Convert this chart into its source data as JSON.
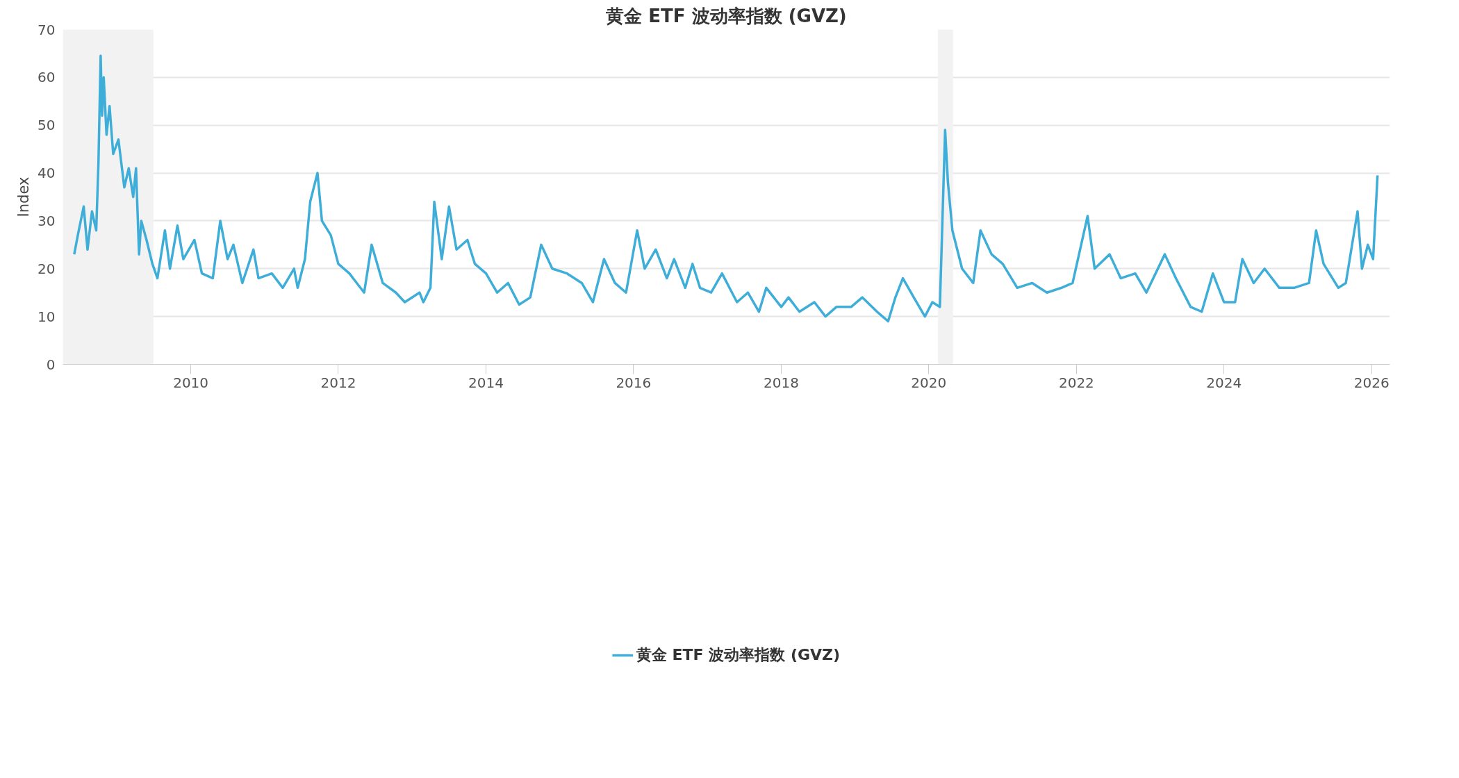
{
  "chart_data": {
    "type": "line",
    "title": "黄金 ETF 波动率指数 (GVZ)",
    "ylabel": "Index",
    "xlim": [
      "2008-04-08",
      "2026-04-01"
    ],
    "ylim": [
      0,
      70
    ],
    "xticks": [
      "2010",
      "2012",
      "2014",
      "2016",
      "2018",
      "2020",
      "2022",
      "2024",
      "2026"
    ],
    "yticks": [
      0,
      10,
      20,
      30,
      40,
      50,
      60,
      70
    ],
    "grid": "y",
    "legend": "bottom",
    "line_style": "solid",
    "marker": "none",
    "bands": [
      {
        "axis": "x",
        "from": "2008-04-08",
        "to": "2009-06-30",
        "color": "#f2f2f2"
      },
      {
        "axis": "x",
        "from": "2020-02-15",
        "to": "2020-04-30",
        "color": "#f2f2f2"
      }
    ],
    "x": [
      "2008-06-03",
      "2008-06-21",
      "2008-07-20",
      "2008-08-08",
      "2008-08-30",
      "2008-09-20",
      "2008-10-01",
      "2008-10-12",
      "2008-10-19",
      "2008-10-27",
      "2008-11-10",
      "2008-11-25",
      "2008-12-13",
      "2009-01-08",
      "2009-02-06",
      "2009-02-28",
      "2009-03-22",
      "2009-04-05",
      "2009-04-20",
      "2009-05-01",
      "2009-05-27",
      "2009-06-25",
      "2009-07-20",
      "2009-08-26",
      "2009-09-20",
      "2009-10-27",
      "2009-11-25",
      "2010-01-19",
      "2010-02-25",
      "2010-04-20",
      "2010-05-27",
      "2010-07-02",
      "2010-07-31",
      "2010-09-13",
      "2010-11-07",
      "2010-12-02",
      "2011-02-06",
      "2011-04-01",
      "2011-05-27",
      "2011-06-14",
      "2011-07-20",
      "2011-08-15",
      "2011-09-20",
      "2011-10-12",
      "2011-11-25",
      "2012-01-01",
      "2012-02-25",
      "2012-05-08",
      "2012-06-14",
      "2012-08-08",
      "2012-10-12",
      "2012-11-25",
      "2013-02-06",
      "2013-02-25",
      "2013-04-01",
      "2013-04-20",
      "2013-05-27",
      "2013-07-02",
      "2013-08-08",
      "2013-10-01",
      "2013-11-07",
      "2014-01-01",
      "2014-02-25",
      "2014-04-20",
      "2014-06-14",
      "2014-08-08",
      "2014-10-01",
      "2014-11-25",
      "2015-02-06",
      "2015-04-20",
      "2015-06-14",
      "2015-08-08",
      "2015-10-01",
      "2015-11-25",
      "2016-01-19",
      "2016-02-25",
      "2016-04-20",
      "2016-06-14",
      "2016-07-20",
      "2016-09-13",
      "2016-10-19",
      "2016-11-25",
      "2017-01-19",
      "2017-03-14",
      "2017-05-27",
      "2017-07-20",
      "2017-09-13",
      "2017-10-19",
      "2018-01-01",
      "2018-02-06",
      "2018-04-01",
      "2018-06-14",
      "2018-08-08",
      "2018-10-01",
      "2018-12-13",
      "2019-02-06",
      "2019-04-20",
      "2019-06-14",
      "2019-07-20",
      "2019-08-26",
      "2019-10-19",
      "2019-12-13",
      "2020-01-19",
      "2020-02-25",
      "2020-03-22",
      "2020-04-05",
      "2020-04-27",
      "2020-06-14",
      "2020-08-08",
      "2020-09-13",
      "2020-11-07",
      "2021-01-01",
      "2021-03-14",
      "2021-05-27",
      "2021-08-08",
      "2021-10-19",
      "2021-12-13",
      "2022-02-25",
      "2022-04-01",
      "2022-06-14",
      "2022-08-08",
      "2022-10-19",
      "2022-12-13",
      "2023-03-14",
      "2023-05-08",
      "2023-07-20",
      "2023-09-13",
      "2023-11-07",
      "2024-01-01",
      "2024-02-25",
      "2024-04-01",
      "2024-05-27",
      "2024-07-20",
      "2024-10-01",
      "2024-12-13",
      "2025-02-25",
      "2025-04-01",
      "2025-05-08",
      "2025-07-20",
      "2025-08-26",
      "2025-10-23",
      "2025-11-14",
      "2025-12-13",
      "2026-01-08",
      "2026-01-30"
    ],
    "series": [
      {
        "name": "黄金 ETF 波动率指数 (GVZ)",
        "color": "#3eaed9",
        "values": [
          23,
          27,
          33,
          24,
          32,
          28,
          42,
          64.5,
          52,
          60,
          48,
          54,
          44,
          47,
          37,
          41,
          35,
          41,
          23,
          30,
          26,
          21,
          18,
          28,
          20,
          29,
          22,
          26,
          19,
          18,
          30,
          22,
          25,
          17,
          24,
          18,
          19,
          16,
          20,
          16,
          22,
          34,
          40,
          30,
          27,
          21,
          19,
          15,
          25,
          17,
          15,
          13,
          15,
          13,
          16,
          34,
          22,
          33,
          24,
          26,
          21,
          19,
          15,
          17,
          12.5,
          14,
          25,
          20,
          19,
          17,
          13,
          22,
          17,
          15,
          28,
          20,
          24,
          18,
          22,
          16,
          21,
          16,
          15,
          19,
          13,
          15,
          11,
          16,
          12,
          14,
          11,
          13,
          10,
          12,
          12,
          14,
          11,
          9,
          14,
          18,
          14,
          10,
          13,
          12,
          49,
          38,
          28,
          20,
          17,
          28,
          23,
          21,
          16,
          17,
          15,
          16,
          17,
          31,
          20,
          23,
          18,
          19,
          15,
          23,
          18,
          12,
          11,
          19,
          13,
          13,
          22,
          17,
          20,
          16,
          16,
          17,
          28,
          21,
          16,
          17,
          32,
          20,
          25,
          22,
          39.5
        ]
      }
    ]
  }
}
